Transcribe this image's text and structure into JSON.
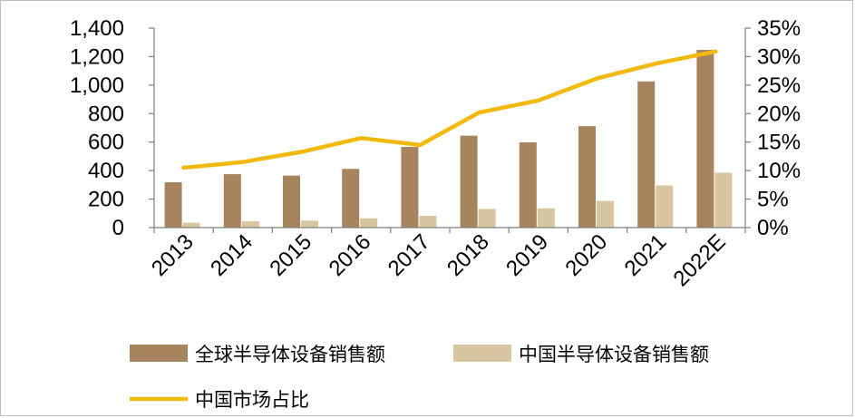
{
  "chart_data": {
    "type": "bar",
    "categories": [
      "2013",
      "2014",
      "2015",
      "2016",
      "2017",
      "2018",
      "2019",
      "2020",
      "2021",
      "2022E"
    ],
    "series": [
      {
        "name": "全球半导体设备销售额",
        "type": "bar",
        "axis": "left",
        "color": "#a8845e",
        "values": [
          318,
          375,
          365,
          412,
          566,
          645,
          598,
          712,
          1026,
          1247
        ]
      },
      {
        "name": "中国半导体设备销售额",
        "type": "bar",
        "axis": "left",
        "color": "#d7c6a0",
        "values": [
          34,
          44,
          49,
          65,
          82,
          131,
          135,
          187,
          296,
          385
        ]
      },
      {
        "name": "中国市场占比",
        "type": "line",
        "axis": "right",
        "color": "#f2b90d",
        "values": [
          10.5,
          11.5,
          13.3,
          15.7,
          14.5,
          20.2,
          22.3,
          26.2,
          28.8,
          30.9
        ]
      }
    ],
    "y_left": {
      "lim": [
        0,
        1400
      ],
      "ticks": [
        "0",
        "200",
        "400",
        "600",
        "800",
        "1,000",
        "1,200",
        "1,400"
      ]
    },
    "y_right": {
      "lim": [
        0,
        35
      ],
      "unit": "%",
      "ticks": [
        "0%",
        "5%",
        "10%",
        "15%",
        "20%",
        "25%",
        "30%",
        "35%"
      ]
    },
    "grid": false,
    "legend_position": "bottom"
  }
}
